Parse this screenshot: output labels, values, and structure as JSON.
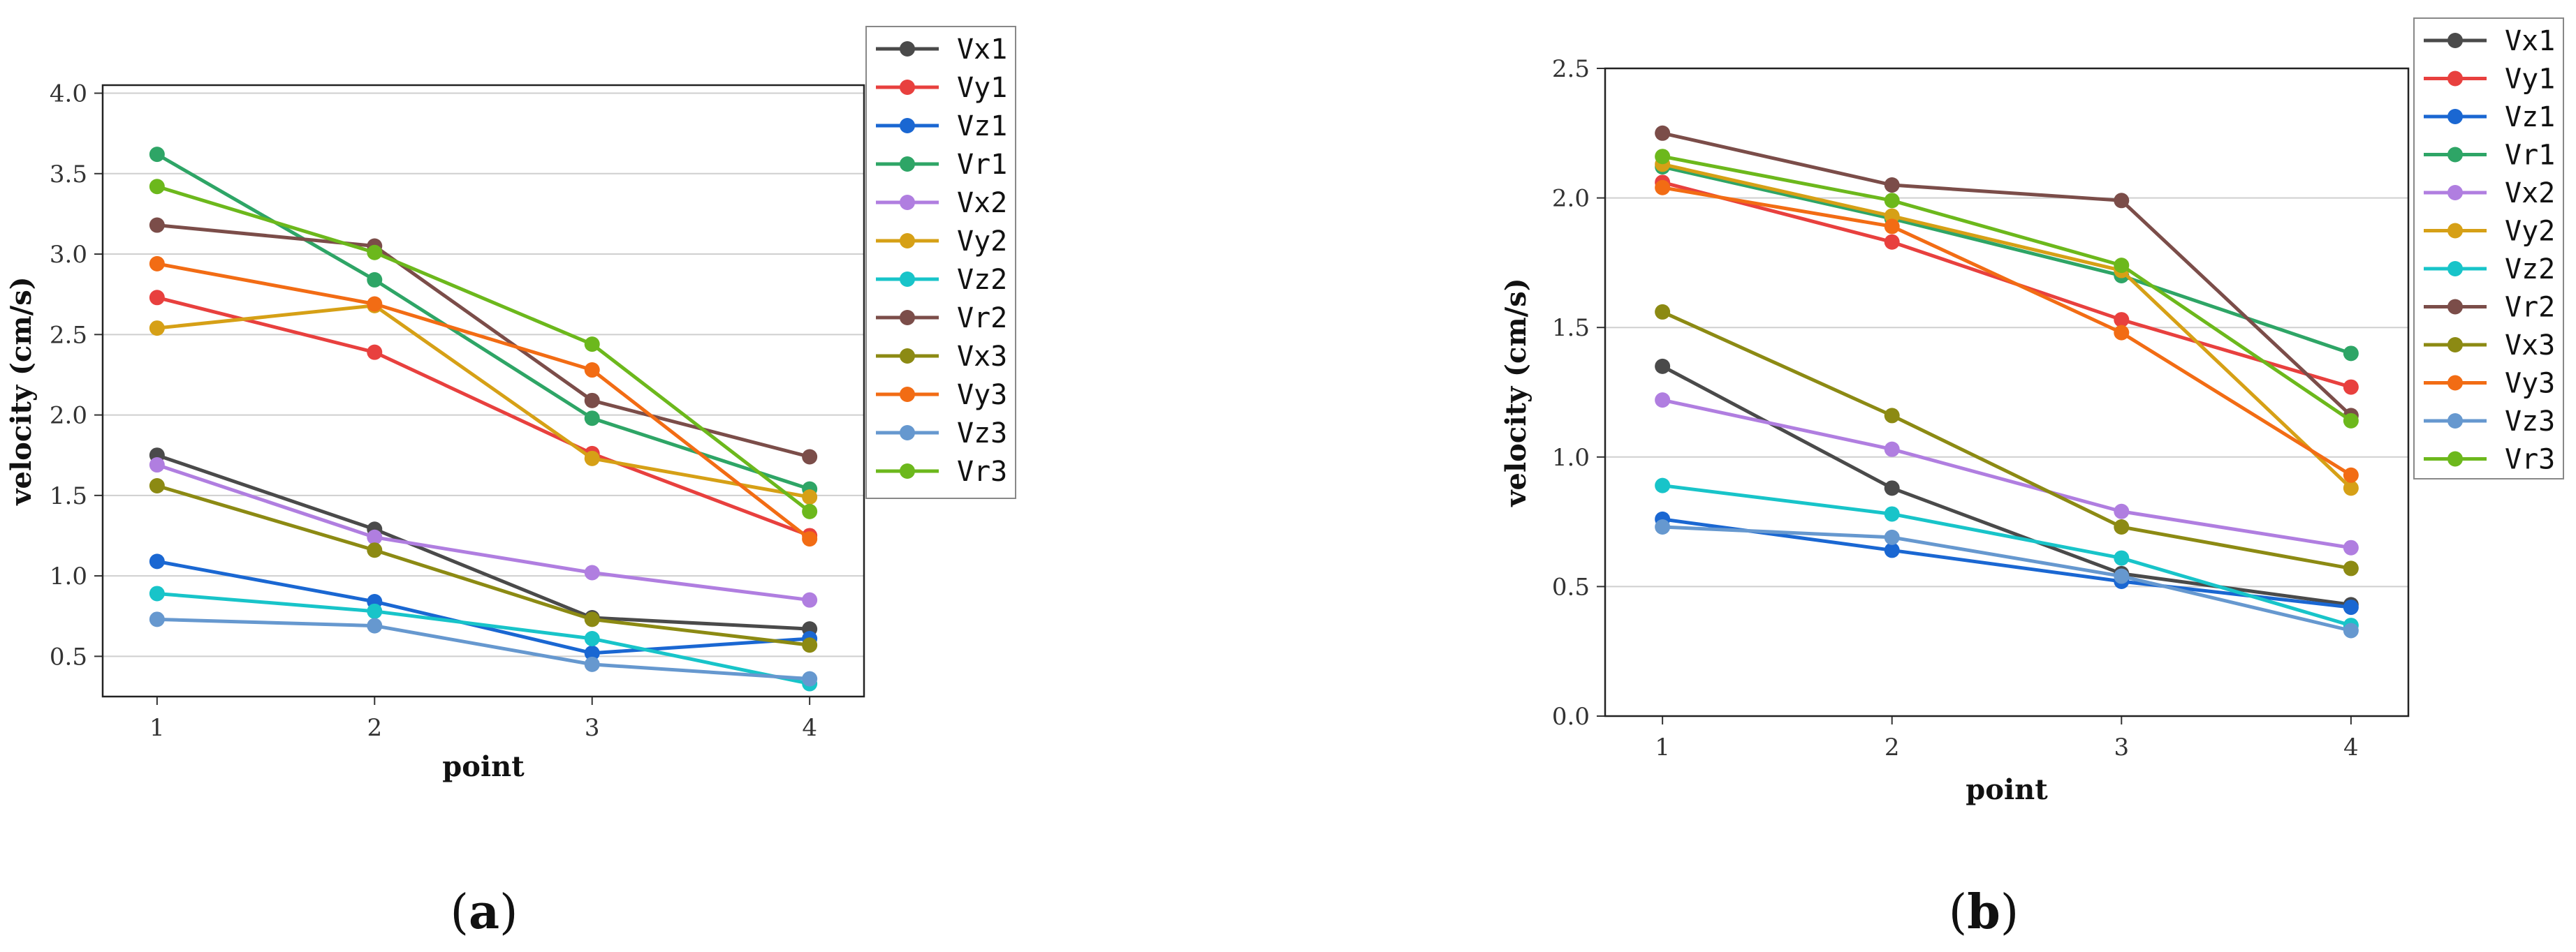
{
  "chart_data": [
    {
      "type": "line",
      "panel_label": "a",
      "caption_open": "(",
      "caption_close": ")",
      "xlabel": "point",
      "ylabel": "velocity (cm/s)",
      "x": [
        1,
        2,
        3,
        4
      ],
      "x_tick_labels": [
        "1",
        "2",
        "3",
        "4"
      ],
      "xlim": [
        0.75,
        4.25
      ],
      "ylim": [
        0.25,
        4.05
      ],
      "y_ticks": [
        0.5,
        1.0,
        1.5,
        2.0,
        2.5,
        3.0,
        3.5,
        4.0
      ],
      "y_tick_labels": [
        "0.5",
        "1.0",
        "1.5",
        "2.0",
        "2.5",
        "3.0",
        "3.5",
        "4.0"
      ],
      "grid": "horizontal",
      "legend_position": "outside right",
      "series": [
        {
          "name": "Vx1",
          "color": "#4a4a4a",
          "values": [
            1.75,
            1.29,
            0.74,
            0.67
          ]
        },
        {
          "name": "Vy1",
          "color": "#e8403e",
          "values": [
            2.73,
            2.39,
            1.76,
            1.25
          ]
        },
        {
          "name": "Vz1",
          "color": "#1a67d2",
          "values": [
            1.09,
            0.84,
            0.52,
            0.61
          ]
        },
        {
          "name": "Vr1",
          "color": "#2ea566",
          "values": [
            3.62,
            2.84,
            1.98,
            1.54
          ]
        },
        {
          "name": "Vx2",
          "color": "#b07ee0",
          "values": [
            1.69,
            1.24,
            1.02,
            0.85
          ]
        },
        {
          "name": "Vy2",
          "color": "#d6a016",
          "values": [
            2.54,
            2.68,
            1.73,
            1.49
          ]
        },
        {
          "name": "Vz2",
          "color": "#18c4c9",
          "values": [
            0.89,
            0.78,
            0.61,
            0.33
          ]
        },
        {
          "name": "Vr2",
          "color": "#7b4d49",
          "values": [
            3.18,
            3.05,
            2.09,
            1.74
          ]
        },
        {
          "name": "Vx3",
          "color": "#8c8a13",
          "values": [
            1.56,
            1.16,
            0.73,
            0.57
          ]
        },
        {
          "name": "Vy3",
          "color": "#f26c14",
          "values": [
            2.94,
            2.69,
            2.28,
            1.23
          ]
        },
        {
          "name": "Vz3",
          "color": "#6698cf",
          "values": [
            0.73,
            0.69,
            0.45,
            0.36
          ]
        },
        {
          "name": "Vr3",
          "color": "#6cb81c",
          "values": [
            3.42,
            3.01,
            2.44,
            1.4
          ]
        }
      ]
    },
    {
      "type": "line",
      "panel_label": "b",
      "caption_open": "(",
      "caption_close": ")",
      "xlabel": "point",
      "ylabel": "velocity (cm/s)",
      "x": [
        1,
        2,
        3,
        4
      ],
      "x_tick_labels": [
        "1",
        "2",
        "3",
        "4"
      ],
      "xlim": [
        0.75,
        4.25
      ],
      "ylim": [
        0.0,
        2.5
      ],
      "y_ticks": [
        0.0,
        0.5,
        1.0,
        1.5,
        2.0,
        2.5
      ],
      "y_tick_labels": [
        "0.0",
        "0.5",
        "1.0",
        "1.5",
        "2.0",
        "2.5"
      ],
      "grid": "horizontal",
      "legend_position": "outside right",
      "series": [
        {
          "name": "Vx1",
          "color": "#4a4a4a",
          "values": [
            1.35,
            0.88,
            0.55,
            0.43
          ]
        },
        {
          "name": "Vy1",
          "color": "#e8403e",
          "values": [
            2.06,
            1.83,
            1.53,
            1.27
          ]
        },
        {
          "name": "Vz1",
          "color": "#1a67d2",
          "values": [
            0.76,
            0.64,
            0.52,
            0.42
          ]
        },
        {
          "name": "Vr1",
          "color": "#2ea566",
          "values": [
            2.12,
            1.92,
            1.7,
            1.4
          ]
        },
        {
          "name": "Vx2",
          "color": "#b07ee0",
          "values": [
            1.22,
            1.03,
            0.79,
            0.65
          ]
        },
        {
          "name": "Vy2",
          "color": "#d6a016",
          "values": [
            2.13,
            1.93,
            1.72,
            0.88
          ]
        },
        {
          "name": "Vz2",
          "color": "#18c4c9",
          "values": [
            0.89,
            0.78,
            0.61,
            0.35
          ]
        },
        {
          "name": "Vr2",
          "color": "#7b4d49",
          "values": [
            2.25,
            2.05,
            1.99,
            1.16
          ]
        },
        {
          "name": "Vx3",
          "color": "#8c8a13",
          "values": [
            1.56,
            1.16,
            0.73,
            0.57
          ]
        },
        {
          "name": "Vy3",
          "color": "#f26c14",
          "values": [
            2.04,
            1.89,
            1.48,
            0.93
          ]
        },
        {
          "name": "Vz3",
          "color": "#6698cf",
          "values": [
            0.73,
            0.69,
            0.54,
            0.33
          ]
        },
        {
          "name": "Vr3",
          "color": "#6cb81c",
          "values": [
            2.16,
            1.99,
            1.74,
            1.14
          ]
        }
      ]
    }
  ]
}
